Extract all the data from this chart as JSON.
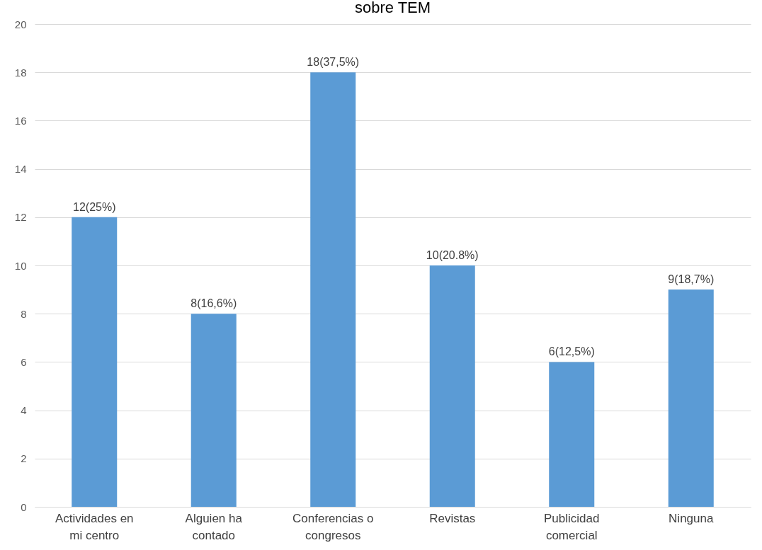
{
  "chart_data": {
    "type": "bar",
    "title": "sobre TEM",
    "categories": [
      "Actividades en mi centro",
      "Alguien ha contado",
      "Conferencias o congresos",
      "Revistas",
      "Publicidad comercial",
      "Ninguna"
    ],
    "values": [
      12,
      8,
      18,
      10,
      6,
      9
    ],
    "value_labels": [
      "12(25%)",
      "8(16,6%)",
      "18(37,5%)",
      "10(20.8%)",
      "6(12,5%)",
      "9(18,7%)"
    ],
    "color": "#5b9bd5",
    "ylim": [
      0,
      20
    ],
    "yticks": [
      0,
      2,
      4,
      6,
      8,
      10,
      12,
      14,
      16,
      18,
      20
    ],
    "grid": "y"
  }
}
